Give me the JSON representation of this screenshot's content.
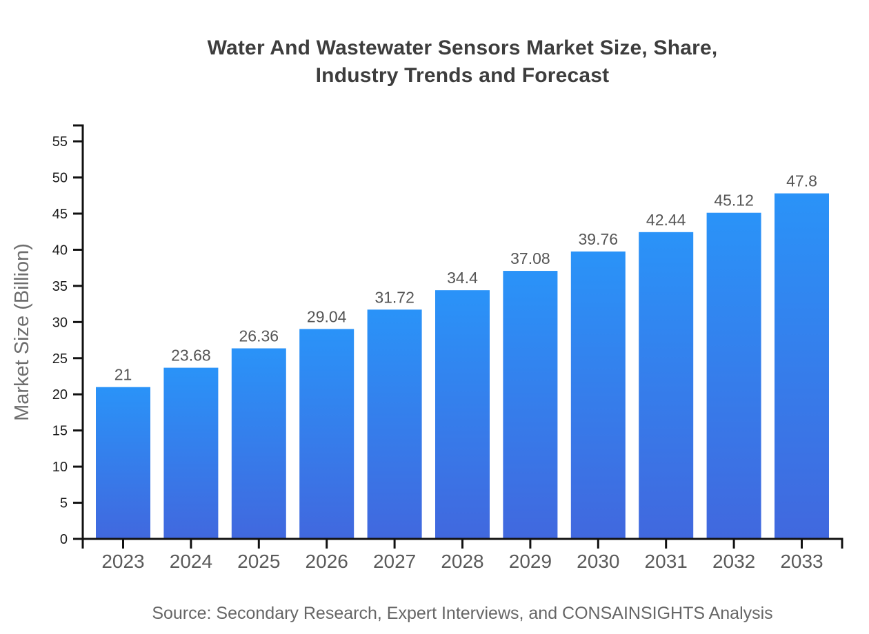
{
  "page": {
    "background": "#ffffff"
  },
  "chart_data": {
    "type": "bar",
    "title": "Water And Wastewater Sensors Market Size, Share,\nIndustry Trends and Forecast",
    "source": "Source: Secondary Research, Expert Interviews, and CONSAINSIGHTS Analysis",
    "ylabel": "Market Size (Billion)",
    "xlabel": "",
    "categories": [
      "2023",
      "2024",
      "2025",
      "2026",
      "2027",
      "2028",
      "2029",
      "2030",
      "2031",
      "2032",
      "2033"
    ],
    "values": [
      21,
      23.68,
      26.36,
      29.04,
      31.72,
      34.4,
      37.08,
      39.76,
      42.44,
      45.12,
      47.8
    ],
    "yticks": [
      0,
      5,
      10,
      15,
      20,
      25,
      30,
      35,
      40,
      45,
      50,
      55
    ],
    "ylim": [
      0,
      57.2
    ],
    "grid": false,
    "legend": "none",
    "colors": {
      "bar_gradient_top": "#2a93f8",
      "bar_gradient_bottom": "#4168de",
      "axis": "#111111",
      "y_tick_label": "#1a1a1a",
      "x_tick_label": "#5a5a5a",
      "value_label": "#555555",
      "title": "#3d3d3d",
      "axis_title": "#6e6e6e",
      "source_text": "#666666"
    }
  }
}
